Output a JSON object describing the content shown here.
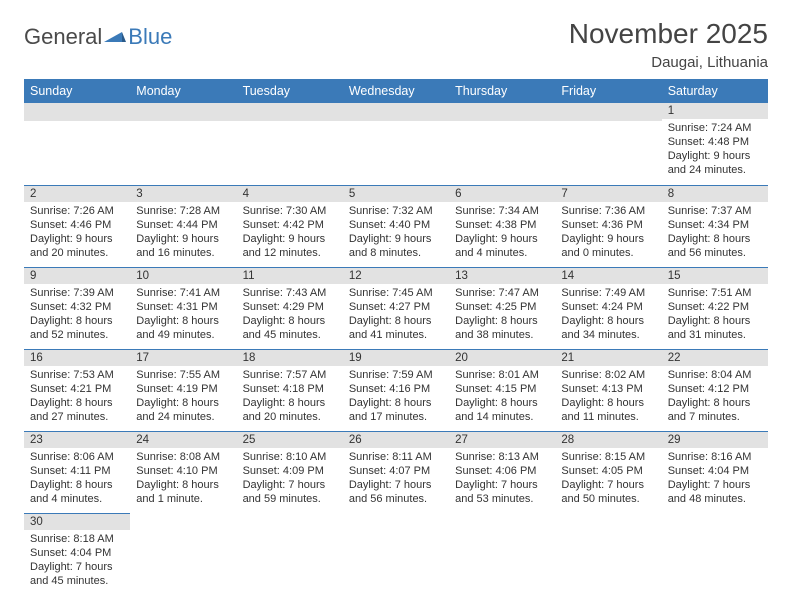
{
  "logo": {
    "text1": "General",
    "text2": "Blue"
  },
  "title": "November 2025",
  "location": "Daugai, Lithuania",
  "colors": {
    "header_bg": "#3b7ab8",
    "header_text": "#ffffff",
    "daynum_bg": "#e2e2e2",
    "border": "#3b7ab8",
    "text": "#333333",
    "background": "#ffffff"
  },
  "weekdays": [
    "Sunday",
    "Monday",
    "Tuesday",
    "Wednesday",
    "Thursday",
    "Friday",
    "Saturday"
  ],
  "rows": [
    [
      {
        "blank": true
      },
      {
        "blank": true
      },
      {
        "blank": true
      },
      {
        "blank": true
      },
      {
        "blank": true
      },
      {
        "blank": true
      },
      {
        "day": "1",
        "sunrise": "Sunrise: 7:24 AM",
        "sunset": "Sunset: 4:48 PM",
        "daylight1": "Daylight: 9 hours",
        "daylight2": "and 24 minutes."
      }
    ],
    [
      {
        "day": "2",
        "sunrise": "Sunrise: 7:26 AM",
        "sunset": "Sunset: 4:46 PM",
        "daylight1": "Daylight: 9 hours",
        "daylight2": "and 20 minutes."
      },
      {
        "day": "3",
        "sunrise": "Sunrise: 7:28 AM",
        "sunset": "Sunset: 4:44 PM",
        "daylight1": "Daylight: 9 hours",
        "daylight2": "and 16 minutes."
      },
      {
        "day": "4",
        "sunrise": "Sunrise: 7:30 AM",
        "sunset": "Sunset: 4:42 PM",
        "daylight1": "Daylight: 9 hours",
        "daylight2": "and 12 minutes."
      },
      {
        "day": "5",
        "sunrise": "Sunrise: 7:32 AM",
        "sunset": "Sunset: 4:40 PM",
        "daylight1": "Daylight: 9 hours",
        "daylight2": "and 8 minutes."
      },
      {
        "day": "6",
        "sunrise": "Sunrise: 7:34 AM",
        "sunset": "Sunset: 4:38 PM",
        "daylight1": "Daylight: 9 hours",
        "daylight2": "and 4 minutes."
      },
      {
        "day": "7",
        "sunrise": "Sunrise: 7:36 AM",
        "sunset": "Sunset: 4:36 PM",
        "daylight1": "Daylight: 9 hours",
        "daylight2": "and 0 minutes."
      },
      {
        "day": "8",
        "sunrise": "Sunrise: 7:37 AM",
        "sunset": "Sunset: 4:34 PM",
        "daylight1": "Daylight: 8 hours",
        "daylight2": "and 56 minutes."
      }
    ],
    [
      {
        "day": "9",
        "sunrise": "Sunrise: 7:39 AM",
        "sunset": "Sunset: 4:32 PM",
        "daylight1": "Daylight: 8 hours",
        "daylight2": "and 52 minutes."
      },
      {
        "day": "10",
        "sunrise": "Sunrise: 7:41 AM",
        "sunset": "Sunset: 4:31 PM",
        "daylight1": "Daylight: 8 hours",
        "daylight2": "and 49 minutes."
      },
      {
        "day": "11",
        "sunrise": "Sunrise: 7:43 AM",
        "sunset": "Sunset: 4:29 PM",
        "daylight1": "Daylight: 8 hours",
        "daylight2": "and 45 minutes."
      },
      {
        "day": "12",
        "sunrise": "Sunrise: 7:45 AM",
        "sunset": "Sunset: 4:27 PM",
        "daylight1": "Daylight: 8 hours",
        "daylight2": "and 41 minutes."
      },
      {
        "day": "13",
        "sunrise": "Sunrise: 7:47 AM",
        "sunset": "Sunset: 4:25 PM",
        "daylight1": "Daylight: 8 hours",
        "daylight2": "and 38 minutes."
      },
      {
        "day": "14",
        "sunrise": "Sunrise: 7:49 AM",
        "sunset": "Sunset: 4:24 PM",
        "daylight1": "Daylight: 8 hours",
        "daylight2": "and 34 minutes."
      },
      {
        "day": "15",
        "sunrise": "Sunrise: 7:51 AM",
        "sunset": "Sunset: 4:22 PM",
        "daylight1": "Daylight: 8 hours",
        "daylight2": "and 31 minutes."
      }
    ],
    [
      {
        "day": "16",
        "sunrise": "Sunrise: 7:53 AM",
        "sunset": "Sunset: 4:21 PM",
        "daylight1": "Daylight: 8 hours",
        "daylight2": "and 27 minutes."
      },
      {
        "day": "17",
        "sunrise": "Sunrise: 7:55 AM",
        "sunset": "Sunset: 4:19 PM",
        "daylight1": "Daylight: 8 hours",
        "daylight2": "and 24 minutes."
      },
      {
        "day": "18",
        "sunrise": "Sunrise: 7:57 AM",
        "sunset": "Sunset: 4:18 PM",
        "daylight1": "Daylight: 8 hours",
        "daylight2": "and 20 minutes."
      },
      {
        "day": "19",
        "sunrise": "Sunrise: 7:59 AM",
        "sunset": "Sunset: 4:16 PM",
        "daylight1": "Daylight: 8 hours",
        "daylight2": "and 17 minutes."
      },
      {
        "day": "20",
        "sunrise": "Sunrise: 8:01 AM",
        "sunset": "Sunset: 4:15 PM",
        "daylight1": "Daylight: 8 hours",
        "daylight2": "and 14 minutes."
      },
      {
        "day": "21",
        "sunrise": "Sunrise: 8:02 AM",
        "sunset": "Sunset: 4:13 PM",
        "daylight1": "Daylight: 8 hours",
        "daylight2": "and 11 minutes."
      },
      {
        "day": "22",
        "sunrise": "Sunrise: 8:04 AM",
        "sunset": "Sunset: 4:12 PM",
        "daylight1": "Daylight: 8 hours",
        "daylight2": "and 7 minutes."
      }
    ],
    [
      {
        "day": "23",
        "sunrise": "Sunrise: 8:06 AM",
        "sunset": "Sunset: 4:11 PM",
        "daylight1": "Daylight: 8 hours",
        "daylight2": "and 4 minutes."
      },
      {
        "day": "24",
        "sunrise": "Sunrise: 8:08 AM",
        "sunset": "Sunset: 4:10 PM",
        "daylight1": "Daylight: 8 hours",
        "daylight2": "and 1 minute."
      },
      {
        "day": "25",
        "sunrise": "Sunrise: 8:10 AM",
        "sunset": "Sunset: 4:09 PM",
        "daylight1": "Daylight: 7 hours",
        "daylight2": "and 59 minutes."
      },
      {
        "day": "26",
        "sunrise": "Sunrise: 8:11 AM",
        "sunset": "Sunset: 4:07 PM",
        "daylight1": "Daylight: 7 hours",
        "daylight2": "and 56 minutes."
      },
      {
        "day": "27",
        "sunrise": "Sunrise: 8:13 AM",
        "sunset": "Sunset: 4:06 PM",
        "daylight1": "Daylight: 7 hours",
        "daylight2": "and 53 minutes."
      },
      {
        "day": "28",
        "sunrise": "Sunrise: 8:15 AM",
        "sunset": "Sunset: 4:05 PM",
        "daylight1": "Daylight: 7 hours",
        "daylight2": "and 50 minutes."
      },
      {
        "day": "29",
        "sunrise": "Sunrise: 8:16 AM",
        "sunset": "Sunset: 4:04 PM",
        "daylight1": "Daylight: 7 hours",
        "daylight2": "and 48 minutes."
      }
    ],
    [
      {
        "day": "30",
        "sunrise": "Sunrise: 8:18 AM",
        "sunset": "Sunset: 4:04 PM",
        "daylight1": "Daylight: 7 hours",
        "daylight2": "and 45 minutes."
      },
      {
        "blank": true
      },
      {
        "blank": true
      },
      {
        "blank": true
      },
      {
        "blank": true
      },
      {
        "blank": true
      },
      {
        "blank": true
      }
    ]
  ]
}
